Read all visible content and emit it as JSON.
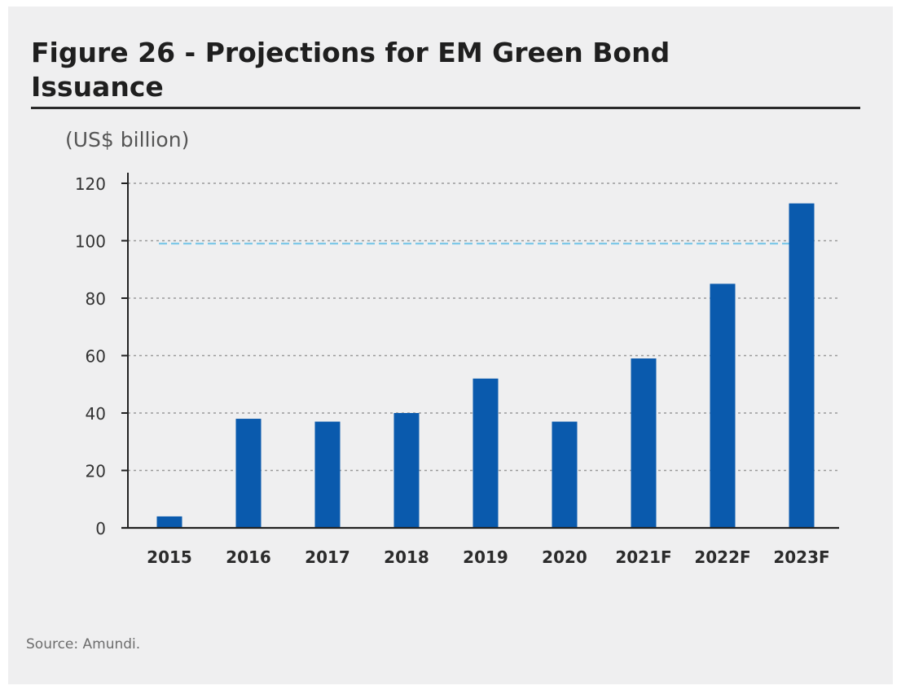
{
  "title": "Figure 26 - Projections for EM Green Bond Issuance",
  "source": "Source: Amundi.",
  "colors": {
    "bar": "#0a5aad",
    "grid": "#9a9a9a",
    "reference_line": "#7ec8e8",
    "axis": "#222222"
  },
  "chart_data": {
    "type": "bar",
    "title": "Figure 26 - Projections for EM Green Bond Issuance",
    "ylabel": "(US$ billion)",
    "xlabel": "",
    "categories": [
      "2015",
      "2016",
      "2017",
      "2018",
      "2019",
      "2020",
      "2021F",
      "2022F",
      "2023F"
    ],
    "values": [
      4,
      38,
      37,
      40,
      52,
      37,
      59,
      85,
      113
    ],
    "ylim": [
      0,
      120
    ],
    "yticks": [
      0,
      20,
      40,
      60,
      80,
      100,
      120
    ],
    "grid": "horizontal dotted",
    "reference_line": {
      "y": 99,
      "style": "dashed"
    }
  }
}
